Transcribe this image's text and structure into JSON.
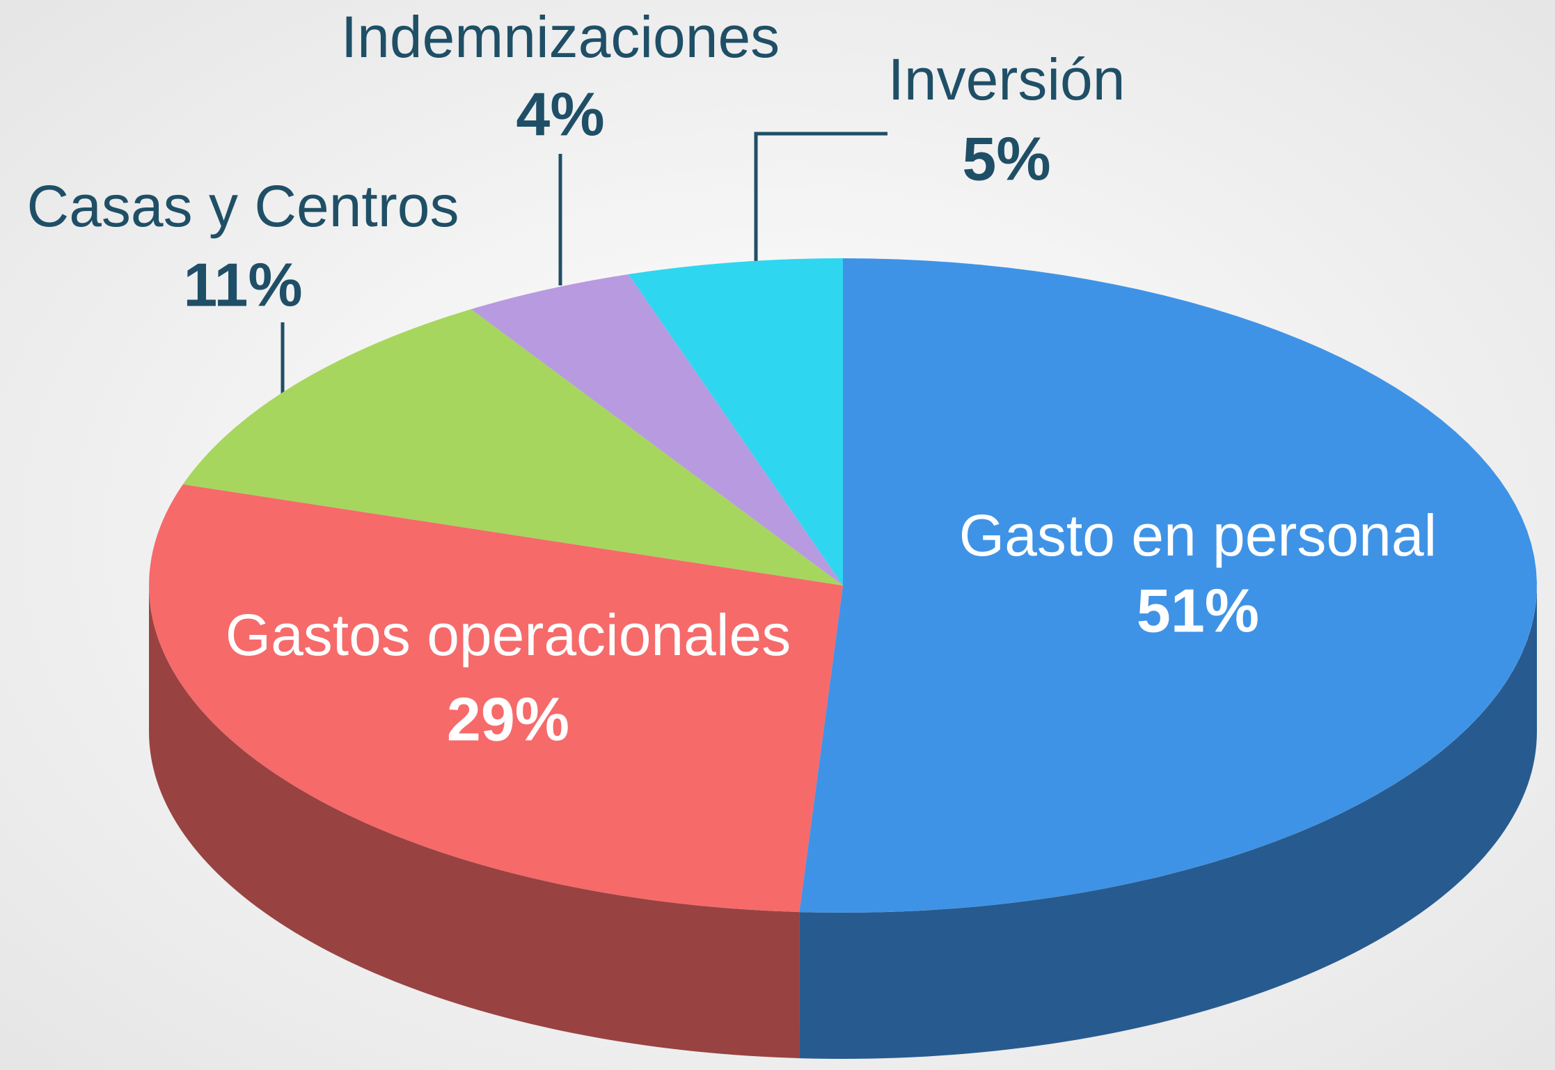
{
  "chart_data": {
    "type": "pie",
    "categories": [
      "Gasto en personal",
      "Gastos operacionales",
      "Casas y Centros",
      "Indemnizaciones",
      "Inversión"
    ],
    "values": [
      51,
      29,
      11,
      4,
      5
    ],
    "value_labels": [
      "51%",
      "29%",
      "11%",
      "4%",
      "5%"
    ],
    "colors": [
      "#3f93e6",
      "#f66a6a",
      "#a6d65e",
      "#b89ae0",
      "#2fd6f0"
    ]
  }
}
